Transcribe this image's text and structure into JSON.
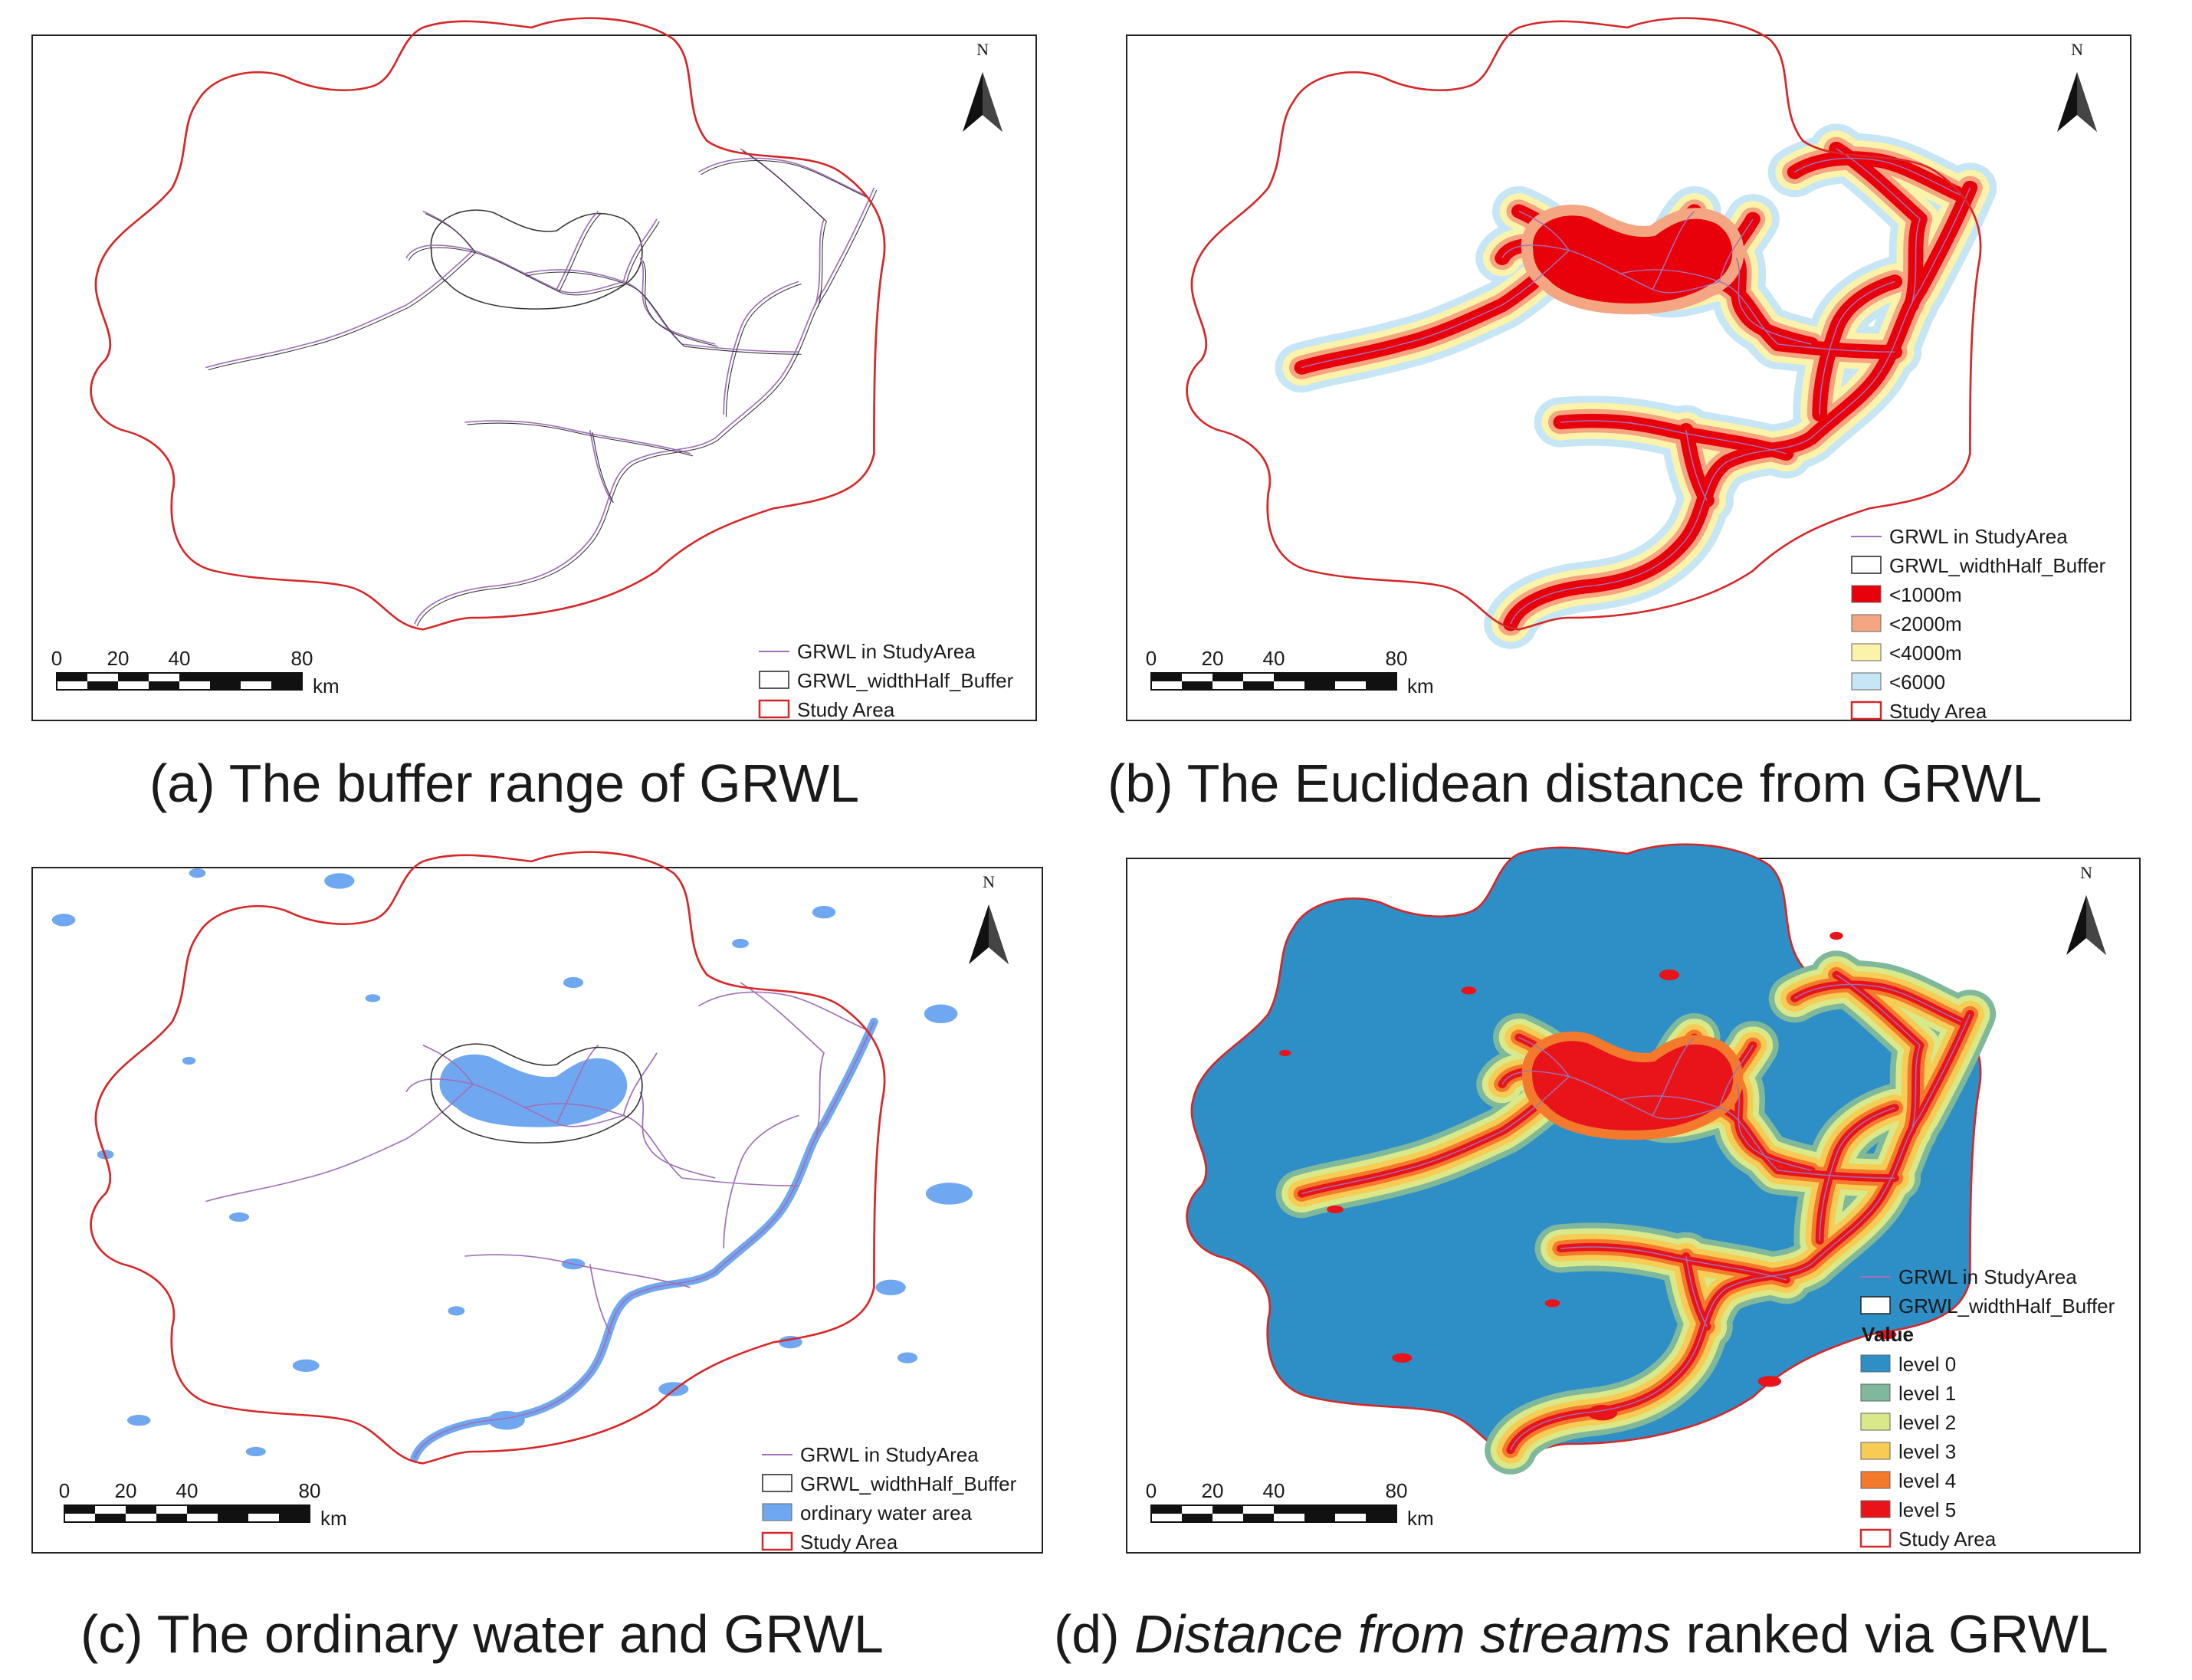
{
  "panels": [
    {
      "id": "a",
      "caption": "(a) The buffer range of GRWL",
      "legend": [
        {
          "symbol": "line-purple",
          "label": "GRWL in StudyArea"
        },
        {
          "symbol": "box-black",
          "label": "GRWL_widthHalf_Buffer"
        },
        {
          "symbol": "box-red",
          "label": "Study Area"
        }
      ]
    },
    {
      "id": "b",
      "caption": "(b) The Euclidean distance from GRWL",
      "legend": [
        {
          "symbol": "line-purple",
          "label": "GRWL in StudyArea"
        },
        {
          "symbol": "box-black",
          "label": "GRWL_widthHalf_Buffer"
        },
        {
          "symbol": "fill",
          "color": "#e8000b",
          "label": "<1000m"
        },
        {
          "symbol": "fill",
          "color": "#f4a582",
          "label": "<2000m"
        },
        {
          "symbol": "fill",
          "color": "#fbf3a9",
          "label": "<4000m"
        },
        {
          "symbol": "fill",
          "color": "#c6e6f5",
          "label": "<6000"
        },
        {
          "symbol": "box-red",
          "label": "Study Area"
        }
      ]
    },
    {
      "id": "c",
      "caption": "(c) The ordinary water and GRWL",
      "legend": [
        {
          "symbol": "line-purple",
          "label": "GRWL in StudyArea"
        },
        {
          "symbol": "box-black",
          "label": "GRWL_widthHalf_Buffer"
        },
        {
          "symbol": "fill",
          "color": "#6fa8f0",
          "label": "ordinary water area"
        },
        {
          "symbol": "box-red",
          "label": "Study Area"
        }
      ]
    },
    {
      "id": "d",
      "caption_prefix": "(d) ",
      "caption_italic": "Distance from streams",
      "caption_suffix": " ranked via GRWL",
      "legend_heading": "Value",
      "legend": [
        {
          "symbol": "line-purple",
          "label": "GRWL in StudyArea"
        },
        {
          "symbol": "box-black",
          "label": "GRWL_widthHalf_Buffer"
        },
        {
          "symbol": "fill",
          "color": "#2e8fc7",
          "label": "level 0"
        },
        {
          "symbol": "fill",
          "color": "#7fb89a",
          "label": "level 1"
        },
        {
          "symbol": "fill",
          "color": "#d9e889",
          "label": "level 2"
        },
        {
          "symbol": "fill",
          "color": "#f7cc55",
          "label": "level 3"
        },
        {
          "symbol": "fill",
          "color": "#f37a2c",
          "label": "level 4"
        },
        {
          "symbol": "fill",
          "color": "#e8141a",
          "label": "level 5"
        },
        {
          "symbol": "box-red",
          "label": "Study Area"
        }
      ]
    }
  ],
  "north_label": "N",
  "scale": {
    "ticks": [
      "0",
      "20",
      "40",
      "80"
    ],
    "unit": "km"
  },
  "colors": {
    "study_area": "#d62728",
    "grwl": "#a070b8",
    "buffer": "#333333",
    "water": "#6fa8f0",
    "level0": "#2e8fc7"
  }
}
